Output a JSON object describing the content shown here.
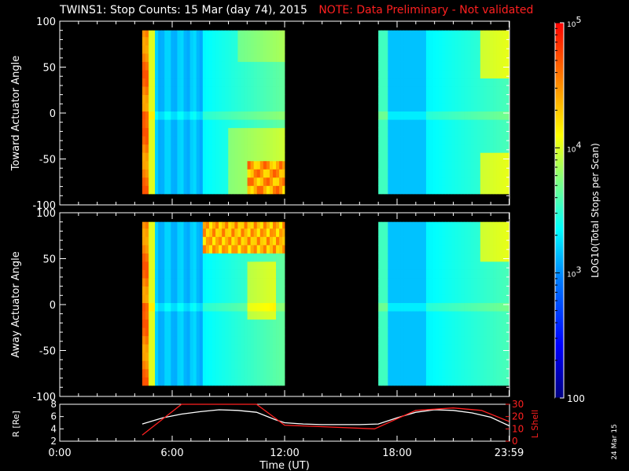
{
  "title": "TWINS1: Stop Counts: 15 Mar (day  74), 2015",
  "note": "NOTE: Data Preliminary - Not validated",
  "stamp": "24 Mar 15",
  "colors": {
    "background": "#000000",
    "axis": "#ffffff",
    "note": "#ff2020",
    "lshell": "#ff2020",
    "radius": "#ffffff",
    "no_data": "#000000"
  },
  "chart_data": [
    {
      "type": "heatmap",
      "name": "toward",
      "ylabel": "Toward Actuator Angle",
      "ylim": [
        -100,
        100
      ],
      "yticks": [
        "100",
        "50",
        "0",
        "-50",
        "-100"
      ],
      "xlim_hours": [
        0,
        24
      ],
      "data_ranges_hours": [
        [
          4.4,
          12.0
        ],
        [
          17.0,
          23.98
        ]
      ],
      "angle_range": [
        -88,
        90
      ],
      "scale": "log",
      "features": "high counts (red/orange) near 4.4-4.7 UT; enhanced counts (yellow/orange) at high negative angles near 10-12 UT and at the edge near 24 UT; minimum (blue) around 5-7.5 UT and 18.5-19.5 UT"
    },
    {
      "type": "heatmap",
      "name": "away",
      "ylabel": "Away Actuator Angle",
      "ylim": [
        -100,
        100
      ],
      "yticks": [
        "100",
        "50",
        "0",
        "-50",
        "-100"
      ],
      "xlim_hours": [
        0,
        24
      ],
      "data_ranges_hours": [
        [
          4.4,
          12.0
        ],
        [
          17.0,
          23.98
        ]
      ],
      "angle_range": [
        -88,
        90
      ],
      "scale": "log",
      "features": "high counts (red/orange) near 4.4-5.0 UT and at high positive angles near 7.5-12 UT; minimum (blue) around 17.5-19.5 UT"
    },
    {
      "type": "colorbar",
      "label": "LOG10(Total Stops per Scan)",
      "ticks": [
        "100",
        "10^3",
        "10^4",
        "10^5"
      ],
      "range": [
        100,
        100000
      ],
      "scale": "log",
      "colormap": [
        "#00007f",
        "#0000ff",
        "#0080ff",
        "#00ffff",
        "#80ff80",
        "#ffff00",
        "#ff8000",
        "#ff0000"
      ]
    },
    {
      "type": "line",
      "name": "orbit",
      "xlabel": "Time (UT)",
      "xticks": [
        "0:00",
        "6:00",
        "12:00",
        "18:00",
        "23:59"
      ],
      "xtick_hours": [
        0,
        6,
        12,
        18,
        23.98
      ],
      "xlim": [
        0,
        24
      ],
      "ylabel_left": "R [Re]",
      "ylim_left": [
        2,
        8
      ],
      "yticks_left": [
        "8",
        "6",
        "4",
        "2"
      ],
      "ylabel_right": "L Shell",
      "ylim_right": [
        0,
        30
      ],
      "yticks_right": [
        "30",
        "20",
        "10",
        "0"
      ],
      "series": [
        {
          "axis": "left",
          "x": [
            4.4,
            5.5,
            6.5,
            7.5,
            8.5,
            9.5,
            10.5,
            11.5,
            12.0,
            13,
            14,
            15,
            16,
            17,
            18,
            19,
            20,
            21,
            22,
            23,
            23.98
          ],
          "y": [
            4.8,
            5.8,
            6.4,
            6.8,
            7.1,
            7.0,
            6.7,
            5.5,
            5.0,
            4.8,
            4.7,
            4.7,
            4.7,
            4.8,
            5.8,
            6.7,
            7.1,
            7.0,
            6.6,
            5.9,
            4.5
          ]
        },
        {
          "axis": "right",
          "x": [
            4.4,
            6.5,
            10.5,
            12.0,
            16.8,
            19.0,
            21.0,
            22.5,
            23.98
          ],
          "y": [
            5,
            30,
            30,
            13,
            10,
            25,
            27,
            25,
            16
          ]
        }
      ]
    }
  ]
}
